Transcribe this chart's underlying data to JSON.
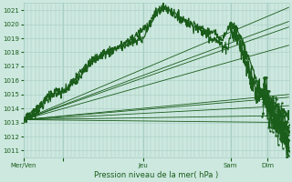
{
  "title": "Pression niveau de la mer( hPa )",
  "ylabel_values": [
    1011,
    1012,
    1013,
    1014,
    1015,
    1016,
    1017,
    1018,
    1019,
    1020,
    1021
  ],
  "ylim": [
    1010.5,
    1021.5
  ],
  "xlim": [
    0,
    100
  ],
  "xtick_positions": [
    0,
    15,
    45,
    78,
    92
  ],
  "xtick_labels": [
    "Mer/Ven",
    "",
    "Jeu",
    "Sam",
    "Dim"
  ],
  "vline_positions": [
    0,
    15,
    45,
    78,
    92
  ],
  "bg_color": "#cce8df",
  "grid_color": "#aacfc5",
  "line_color": "#1a5c1a",
  "font_color": "#1a5c1a",
  "straight_series": [
    {
      "x": [
        0,
        100
      ],
      "y": [
        1013.2,
        1021.2
      ]
    },
    {
      "x": [
        0,
        100
      ],
      "y": [
        1013.2,
        1020.2
      ]
    },
    {
      "x": [
        0,
        100
      ],
      "y": [
        1013.2,
        1019.8
      ]
    },
    {
      "x": [
        0,
        100
      ],
      "y": [
        1013.2,
        1018.5
      ]
    },
    {
      "x": [
        0,
        100
      ],
      "y": [
        1013.2,
        1015.0
      ]
    },
    {
      "x": [
        0,
        100
      ],
      "y": [
        1013.2,
        1014.8
      ]
    },
    {
      "x": [
        0,
        100
      ],
      "y": [
        1013.2,
        1014.2
      ]
    },
    {
      "x": [
        0,
        100
      ],
      "y": [
        1013.2,
        1013.5
      ]
    },
    {
      "x": [
        0,
        100
      ],
      "y": [
        1013.2,
        1013.0
      ]
    }
  ],
  "noisy_curve_points": [
    [
      0,
      1013.2
    ],
    [
      3,
      1013.5
    ],
    [
      5,
      1013.8
    ],
    [
      7,
      1014.2
    ],
    [
      9,
      1014.6
    ],
    [
      11,
      1015.0
    ],
    [
      13,
      1015.3
    ],
    [
      15,
      1015.2
    ],
    [
      17,
      1015.5
    ],
    [
      19,
      1016.0
    ],
    [
      21,
      1016.5
    ],
    [
      23,
      1017.0
    ],
    [
      25,
      1017.3
    ],
    [
      27,
      1017.5
    ],
    [
      29,
      1017.7
    ],
    [
      31,
      1017.9
    ],
    [
      33,
      1018.1
    ],
    [
      35,
      1018.3
    ],
    [
      37,
      1018.5
    ],
    [
      39,
      1018.7
    ],
    [
      41,
      1019.0
    ],
    [
      43,
      1019.3
    ],
    [
      45,
      1019.6
    ],
    [
      47,
      1020.0
    ],
    [
      49,
      1020.5
    ],
    [
      51,
      1021.0
    ],
    [
      53,
      1021.2
    ],
    [
      55,
      1021.0
    ],
    [
      57,
      1020.7
    ],
    [
      59,
      1020.5
    ],
    [
      61,
      1020.3
    ],
    [
      63,
      1020.0
    ],
    [
      65,
      1019.8
    ],
    [
      67,
      1019.5
    ],
    [
      69,
      1019.3
    ],
    [
      71,
      1019.0
    ],
    [
      73,
      1018.8
    ],
    [
      75,
      1018.5
    ],
    [
      77,
      1018.3
    ],
    [
      79,
      1020.0
    ],
    [
      81,
      1019.5
    ],
    [
      83,
      1018.5
    ],
    [
      85,
      1017.0
    ],
    [
      87,
      1016.0
    ],
    [
      89,
      1015.2
    ],
    [
      91,
      1014.8
    ],
    [
      93,
      1014.5
    ],
    [
      95,
      1014.2
    ],
    [
      97,
      1013.8
    ],
    [
      100,
      1013.5
    ]
  ],
  "noisy_curve2_points": [
    [
      0,
      1013.2
    ],
    [
      5,
      1014.0
    ],
    [
      10,
      1015.0
    ],
    [
      15,
      1015.2
    ],
    [
      20,
      1016.0
    ],
    [
      25,
      1017.2
    ],
    [
      30,
      1018.0
    ],
    [
      35,
      1018.3
    ],
    [
      40,
      1018.6
    ],
    [
      45,
      1019.0
    ],
    [
      50,
      1020.8
    ],
    [
      53,
      1021.1
    ],
    [
      55,
      1021.0
    ],
    [
      60,
      1020.2
    ],
    [
      65,
      1019.8
    ],
    [
      70,
      1019.5
    ],
    [
      75,
      1019.0
    ],
    [
      78,
      1020.0
    ],
    [
      80,
      1019.5
    ],
    [
      82,
      1019.0
    ],
    [
      84,
      1018.0
    ],
    [
      86,
      1017.0
    ],
    [
      88,
      1016.0
    ],
    [
      90,
      1015.0
    ],
    [
      92,
      1014.5
    ],
    [
      94,
      1013.5
    ],
    [
      96,
      1013.0
    ],
    [
      98,
      1012.8
    ],
    [
      100,
      1013.2
    ]
  ],
  "end_chaotic": [
    [
      78,
      1020.0
    ],
    [
      79,
      1019.0
    ],
    [
      80,
      1019.5
    ],
    [
      81,
      1018.8
    ],
    [
      82,
      1018.0
    ],
    [
      83,
      1017.5
    ],
    [
      84,
      1017.0
    ],
    [
      85,
      1016.5
    ],
    [
      86,
      1016.0
    ],
    [
      87,
      1015.5
    ],
    [
      88,
      1015.0
    ],
    [
      89,
      1015.3
    ],
    [
      90,
      1014.8
    ],
    [
      91,
      1015.0
    ],
    [
      92,
      1014.5
    ],
    [
      93,
      1013.8
    ],
    [
      94,
      1013.5
    ],
    [
      95,
      1013.0
    ],
    [
      96,
      1013.2
    ],
    [
      97,
      1012.8
    ],
    [
      98,
      1012.5
    ],
    [
      99,
      1012.0
    ],
    [
      100,
      1011.5
    ]
  ]
}
